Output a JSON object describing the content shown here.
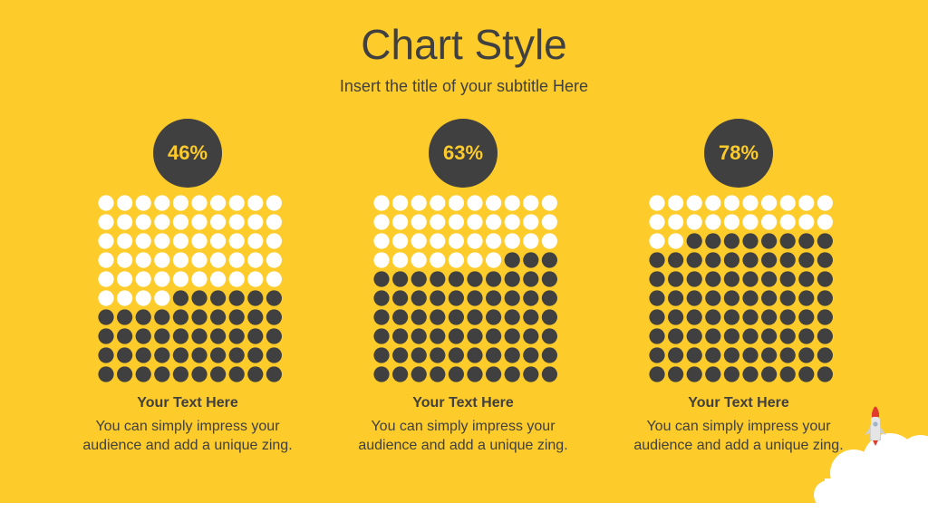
{
  "title": "Chart Style",
  "subtitle": "Insert the title of your subtitle Here",
  "colors": {
    "background": "#fdcb2a",
    "filled_dot": "#404040",
    "empty_dot": "#ffffff",
    "text": "#404040"
  },
  "chart_data": [
    {
      "type": "waffle",
      "grid": [
        10,
        10
      ],
      "value": 46,
      "label": "46%",
      "caption_title": "Your Text  Here",
      "caption_body": "You can simply impress your audience and add a unique zing."
    },
    {
      "type": "waffle",
      "grid": [
        10,
        10
      ],
      "value": 63,
      "label": "63%",
      "caption_title": "Your Text  Here",
      "caption_body": "You can simply impress your audience and add a unique zing."
    },
    {
      "type": "waffle",
      "grid": [
        10,
        10
      ],
      "value": 78,
      "label": "78%",
      "caption_title": "Your Text  Here",
      "caption_body": "You can simply impress your audience and add a unique zing."
    }
  ],
  "decor": {
    "icon": "rocket-icon",
    "cloud": "cloud-icon"
  }
}
